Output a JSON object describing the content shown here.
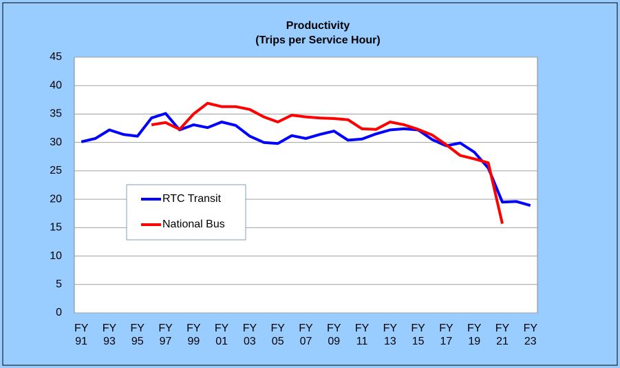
{
  "chart_data": {
    "type": "line",
    "title": "Productivity",
    "subtitle": "(Trips per Service Hour)",
    "categories": [
      "FY 91",
      null,
      "FY 93",
      null,
      "FY 95",
      null,
      "FY 97",
      null,
      "FY 99",
      null,
      "FY 01",
      null,
      "FY 03",
      null,
      "FY 05",
      null,
      "FY 07",
      null,
      "FY 09",
      null,
      "FY 11",
      null,
      "FY 13",
      null,
      "FY 15",
      null,
      "FY 17",
      null,
      "FY 19",
      null,
      "FY 21",
      null,
      "FY 23"
    ],
    "series": [
      {
        "name": "RTC Transit",
        "color": "#0000ff",
        "values": [
          30.1,
          30.7,
          32.2,
          31.4,
          31.1,
          34.3,
          35.1,
          32.2,
          33.1,
          32.6,
          33.6,
          33.0,
          31.1,
          30.0,
          29.8,
          31.2,
          30.7,
          31.4,
          32.0,
          30.4,
          30.6,
          31.5,
          32.2,
          32.4,
          32.2,
          30.5,
          29.4,
          29.9,
          28.3,
          25.5,
          19.5,
          19.6,
          18.9
        ]
      },
      {
        "name": "National Bus",
        "color": "#ff0000",
        "values": [
          null,
          null,
          null,
          null,
          null,
          33.1,
          33.5,
          32.3,
          35.0,
          36.9,
          36.3,
          36.3,
          35.8,
          34.5,
          33.6,
          34.8,
          34.5,
          34.3,
          34.2,
          34.0,
          32.4,
          32.3,
          33.6,
          33.1,
          32.3,
          31.3,
          29.6,
          27.7,
          27.1,
          26.4,
          15.7,
          null,
          null
        ]
      }
    ],
    "ylim": [
      0,
      45
    ],
    "yticks": [
      0,
      5,
      10,
      15,
      20,
      25,
      30,
      35,
      40,
      45
    ],
    "grid": true
  }
}
